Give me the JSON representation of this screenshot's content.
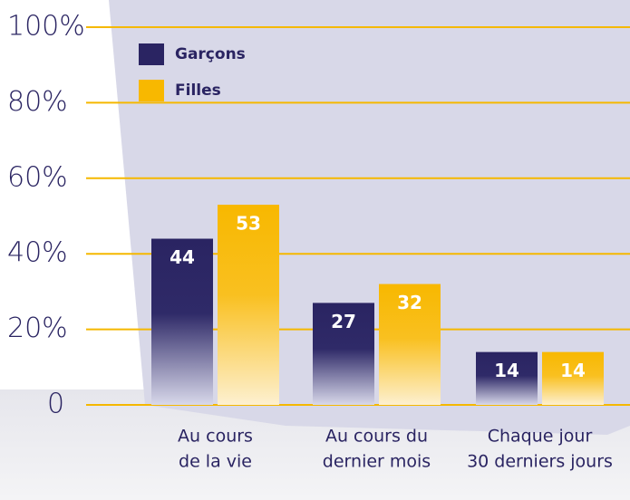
{
  "chart_data": {
    "type": "bar",
    "categories": [
      [
        "Au cours",
        "de la vie"
      ],
      [
        "Au cours du",
        "dernier mois"
      ],
      [
        "Chaque jour",
        "30 derniers jours"
      ]
    ],
    "series": [
      {
        "name": "Garçons",
        "color": "#2a2462",
        "values": [
          44,
          27,
          14
        ]
      },
      {
        "name": "Filles",
        "color": "#f8b800",
        "values": [
          53,
          32,
          14
        ]
      }
    ],
    "ylim": [
      0,
      100
    ],
    "yticks": [
      0,
      {
        "value": 20,
        "label": "20%"
      },
      {
        "value": 40,
        "label": "40%"
      },
      {
        "value": 60,
        "label": "60%"
      },
      {
        "value": 80,
        "label": "80%"
      },
      {
        "value": 100,
        "label": "100%"
      }
    ],
    "grid": true,
    "legend": "top-left"
  }
}
